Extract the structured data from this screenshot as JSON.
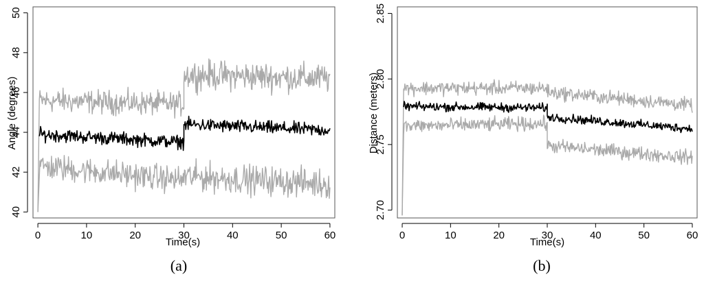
{
  "colors": {
    "band": "#aaaaaa",
    "mean": "#000000"
  },
  "chart_data": [
    {
      "type": "line",
      "caption": "(a)",
      "xlabel": "Time(s)",
      "ylabel": "Angle (degrees)",
      "xlim": [
        -1,
        61
      ],
      "ylim": [
        39.7,
        50.3
      ],
      "xticks": [
        0,
        10,
        20,
        30,
        40,
        50,
        60
      ],
      "yticks": [
        40,
        42,
        44,
        46,
        48,
        50
      ],
      "start_value": 40,
      "series": [
        {
          "role": "upper",
          "segments": [
            {
              "x": [
                0.3,
                30
              ],
              "y": [
                45.6,
                45.4
              ],
              "noise": 0.45
            },
            {
              "x": [
                30,
                60
              ],
              "y": [
                46.9,
                46.7
              ],
              "noise": 0.55
            }
          ]
        },
        {
          "role": "mean",
          "segments": [
            {
              "x": [
                0.3,
                30
              ],
              "y": [
                43.9,
                43.5
              ],
              "noise": 0.25
            },
            {
              "x": [
                30,
                60
              ],
              "y": [
                44.4,
                44.1
              ],
              "noise": 0.25
            }
          ]
        },
        {
          "role": "lower",
          "segments": [
            {
              "x": [
                0.3,
                30
              ],
              "y": [
                42.3,
                41.6
              ],
              "noise": 0.5
            },
            {
              "x": [
                30,
                60
              ],
              "y": [
                41.8,
                41.4
              ],
              "noise": 0.55
            }
          ]
        }
      ]
    },
    {
      "type": "line",
      "caption": "(b)",
      "xlabel": "Time(s)",
      "ylabel": "Distance (meters)",
      "xlim": [
        -1,
        61
      ],
      "ylim": [
        2.694,
        2.855
      ],
      "xticks": [
        0,
        10,
        20,
        30,
        40,
        50,
        60
      ],
      "yticks": [
        2.7,
        2.75,
        2.8,
        2.85
      ],
      "ytick_labels": [
        "2.70",
        "2.75",
        "2.80",
        "2.85"
      ],
      "start_value": 2.696,
      "series": [
        {
          "role": "upper",
          "segments": [
            {
              "x": [
                0.3,
                30
              ],
              "y": [
                2.793,
                2.793
              ],
              "noise": 0.004
            },
            {
              "x": [
                30,
                60
              ],
              "y": [
                2.79,
                2.78
              ],
              "noise": 0.004
            }
          ]
        },
        {
          "role": "mean",
          "segments": [
            {
              "x": [
                0.3,
                30
              ],
              "y": [
                2.779,
                2.778
              ],
              "noise": 0.0025
            },
            {
              "x": [
                30,
                60
              ],
              "y": [
                2.771,
                2.762
              ],
              "noise": 0.0025
            }
          ]
        },
        {
          "role": "lower",
          "segments": [
            {
              "x": [
                0.3,
                30
              ],
              "y": [
                2.764,
                2.766
              ],
              "noise": 0.004
            },
            {
              "x": [
                30,
                60
              ],
              "y": [
                2.749,
                2.74
              ],
              "noise": 0.004
            }
          ]
        }
      ]
    }
  ]
}
